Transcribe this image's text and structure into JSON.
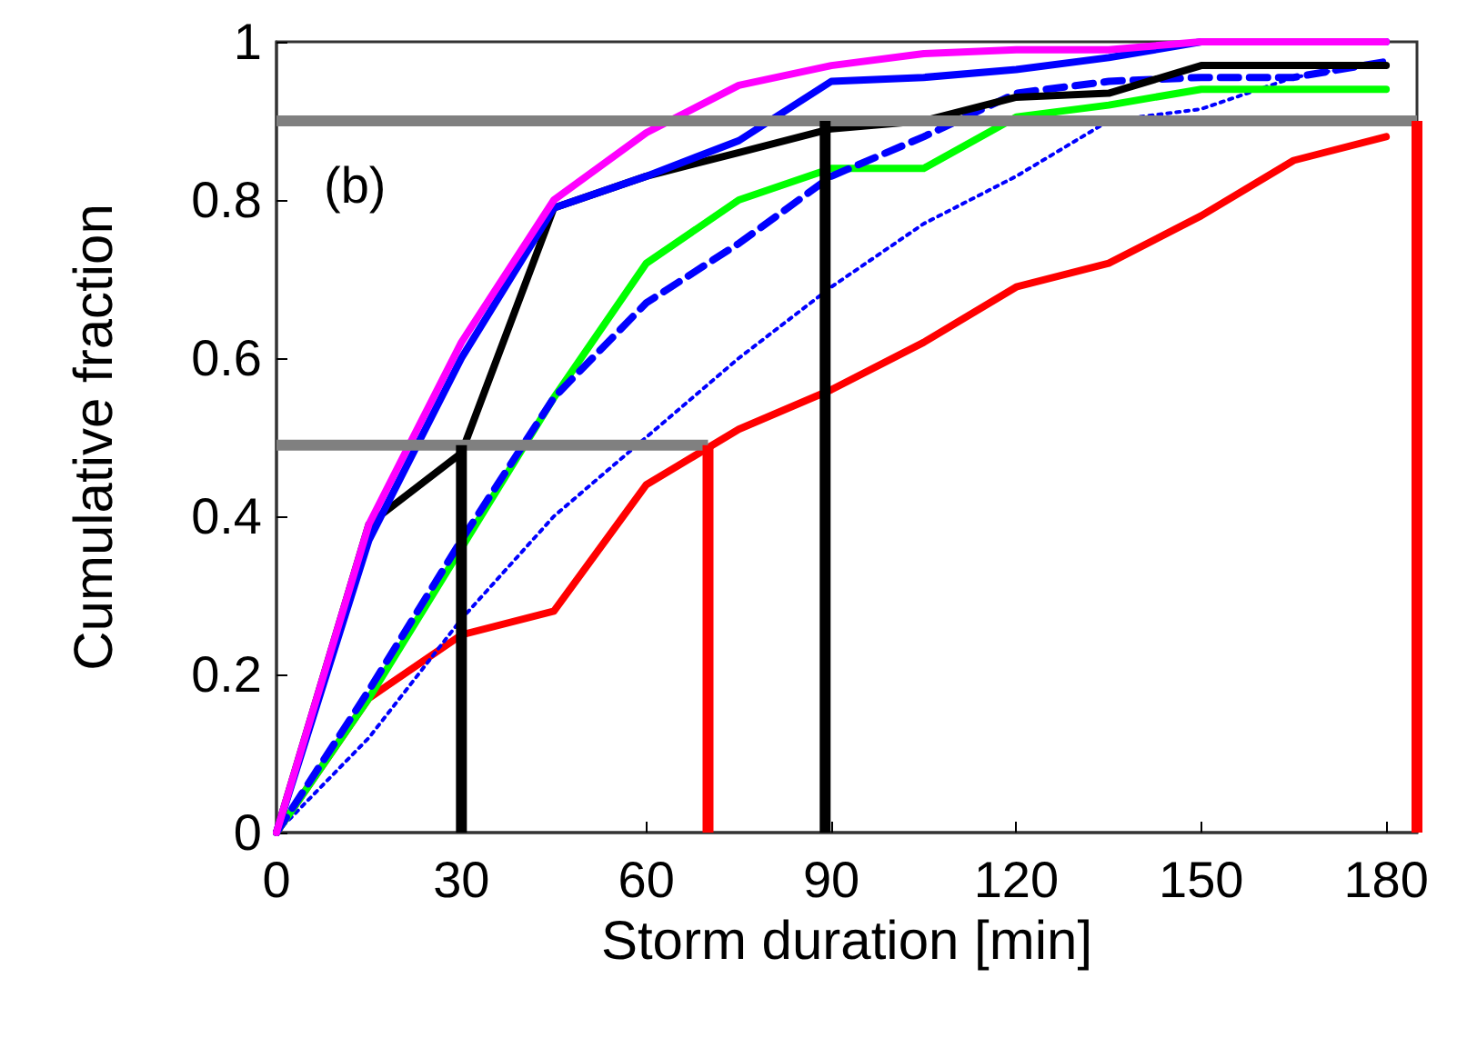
{
  "chart_data": {
    "type": "line",
    "xlabel": "Storm duration [min]",
    "ylabel": "Cumulative fraction",
    "annotations": [
      "(b)"
    ],
    "x": [
      0,
      15,
      30,
      45,
      60,
      75,
      90,
      105,
      120,
      135,
      150,
      165,
      180
    ],
    "xlim": [
      0,
      185
    ],
    "xticks": [
      0,
      30,
      60,
      90,
      120,
      150,
      180
    ],
    "ylim": [
      0,
      1
    ],
    "yticks": [
      0,
      0.2,
      0.4,
      0.6,
      0.8,
      1
    ],
    "grid": false,
    "marker": "none",
    "series": [
      {
        "color": "#ff0000",
        "values": [
          0,
          0.17,
          0.25,
          0.28,
          0.44,
          0.51,
          0.56,
          0.62,
          0.69,
          0.72,
          0.78,
          0.85,
          0.88
        ]
      },
      {
        "color": "#0000ff",
        "line_style": "dotted",
        "values": [
          0,
          0.12,
          0.27,
          0.4,
          0.5,
          0.6,
          0.69,
          0.77,
          0.83,
          0.9,
          0.915,
          0.955,
          0.975
        ]
      },
      {
        "color": "#00ff00",
        "values": [
          0,
          0.17,
          0.36,
          0.55,
          0.72,
          0.8,
          0.84,
          0.84,
          0.905,
          0.92,
          0.94,
          0.94,
          0.94
        ]
      },
      {
        "color": "#0000ff",
        "line_style": "dashed",
        "values": [
          0,
          0.18,
          0.37,
          0.55,
          0.67,
          0.745,
          0.83,
          0.88,
          0.935,
          0.95,
          0.955,
          0.955,
          0.975
        ]
      },
      {
        "color": "#000000",
        "values": [
          0,
          0.39,
          0.48,
          0.79,
          0.83,
          0.86,
          0.89,
          0.9,
          0.93,
          0.935,
          0.97,
          0.97,
          0.97
        ]
      },
      {
        "color": "#0000ff",
        "values": [
          0,
          0.37,
          0.6,
          0.79,
          0.83,
          0.875,
          0.95,
          0.955,
          0.965,
          0.98,
          1,
          1,
          1
        ]
      },
      {
        "color": "#ff00ff",
        "values": [
          0,
          0.39,
          0.62,
          0.8,
          0.885,
          0.945,
          0.97,
          0.985,
          0.99,
          0.99,
          1,
          1,
          1
        ]
      },
      {
        "color": "#808080",
        "x": [
          0,
          70
        ],
        "values": [
          0.49,
          0.49
        ]
      },
      {
        "color": "#808080",
        "x": [
          0,
          185
        ],
        "values": [
          0.9,
          0.9
        ]
      },
      {
        "color": "#000000",
        "x": [
          30,
          30
        ],
        "values": [
          0,
          0.49
        ]
      },
      {
        "color": "#000000",
        "x": [
          89,
          89
        ],
        "values": [
          0,
          0.9
        ]
      },
      {
        "color": "#ff0000",
        "x": [
          70,
          70
        ],
        "values": [
          0,
          0.49
        ]
      },
      {
        "color": "#ff0000",
        "x": [
          185,
          185
        ],
        "values": [
          0,
          0.9
        ]
      }
    ]
  }
}
